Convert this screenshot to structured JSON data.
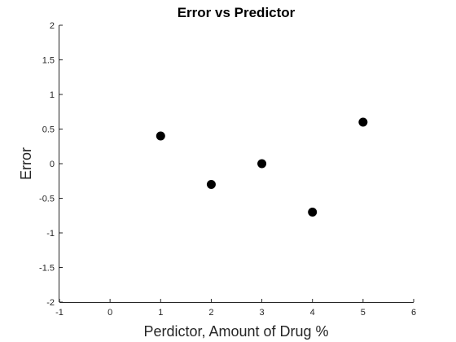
{
  "chart_data": {
    "type": "scatter",
    "title": "Error vs Predictor",
    "xlabel": "Perdictor, Amount of Drug %",
    "ylabel": "Error",
    "xlim": [
      -1,
      6
    ],
    "ylim": [
      -2,
      2
    ],
    "xticks": [
      -1,
      0,
      1,
      2,
      3,
      4,
      5,
      6
    ],
    "yticks": [
      -2,
      -1.5,
      -1,
      -0.5,
      0,
      0.5,
      1,
      1.5,
      2
    ],
    "xtick_labels": [
      "-1",
      "0",
      "1",
      "2",
      "3",
      "4",
      "5",
      "6"
    ],
    "ytick_labels": [
      "-2",
      "-1.5",
      "-1",
      "-0.5",
      "0",
      "0.5",
      "1",
      "1.5",
      "2"
    ],
    "grid": false,
    "marker_color": "#000000",
    "x": [
      1,
      2,
      3,
      4,
      5
    ],
    "y": [
      0.4,
      -0.3,
      0.0,
      -0.7,
      0.6
    ]
  }
}
